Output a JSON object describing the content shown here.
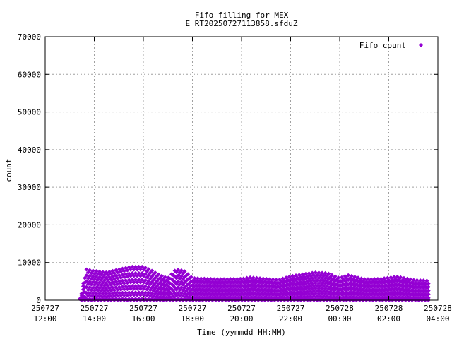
{
  "chart_data": {
    "type": "scatter",
    "title": "Fifo filling for MEX",
    "subtitle": "E_RT20250727113858.sfduZ",
    "xlabel": "Time (yymmdd HH:MM)",
    "ylabel": "count",
    "xlim": [
      "2025-07-27 12:00",
      "2025-07-28 04:00"
    ],
    "ylim": [
      0,
      70000
    ],
    "grid": true,
    "legend_position": "top-right",
    "x_ticks": [
      {
        "time": "2025-07-27 12:00",
        "line1": "250727",
        "line2": "12:00"
      },
      {
        "time": "2025-07-27 14:00",
        "line1": "250727",
        "line2": "14:00"
      },
      {
        "time": "2025-07-27 16:00",
        "line1": "250727",
        "line2": "16:00"
      },
      {
        "time": "2025-07-27 18:00",
        "line1": "250727",
        "line2": "18:00"
      },
      {
        "time": "2025-07-27 20:00",
        "line1": "250727",
        "line2": "20:00"
      },
      {
        "time": "2025-07-27 22:00",
        "line1": "250727",
        "line2": "22:00"
      },
      {
        "time": "2025-07-28 00:00",
        "line1": "250728",
        "line2": "00:00"
      },
      {
        "time": "2025-07-28 02:00",
        "line1": "250728",
        "line2": "02:00"
      },
      {
        "time": "2025-07-28 04:00",
        "line1": "250728",
        "line2": "04:00"
      }
    ],
    "y_ticks": [
      0,
      10000,
      20000,
      30000,
      40000,
      50000,
      60000,
      70000
    ],
    "series": [
      {
        "name": "Fifo count",
        "color": "#9400d3",
        "marker": "diamond",
        "layers": 6,
        "envelope": [
          [
            "2025-07-27 13:25",
            0
          ],
          [
            "2025-07-27 13:40",
            7800
          ],
          [
            "2025-07-27 14:00",
            7400
          ],
          [
            "2025-07-27 14:30",
            7000
          ],
          [
            "2025-07-27 15:00",
            7800
          ],
          [
            "2025-07-27 15:30",
            8500
          ],
          [
            "2025-07-27 16:00",
            8500
          ],
          [
            "2025-07-27 16:20",
            7500
          ],
          [
            "2025-07-27 16:40",
            6300
          ],
          [
            "2025-07-27 17:00",
            5500
          ],
          [
            "2025-07-27 17:20",
            7800
          ],
          [
            "2025-07-27 17:40",
            7400
          ],
          [
            "2025-07-27 18:00",
            5500
          ],
          [
            "2025-07-27 19:00",
            5200
          ],
          [
            "2025-07-27 20:00",
            5300
          ],
          [
            "2025-07-27 20:20",
            5700
          ],
          [
            "2025-07-27 21:00",
            5300
          ],
          [
            "2025-07-27 21:30",
            5000
          ],
          [
            "2025-07-27 22:00",
            6000
          ],
          [
            "2025-07-27 22:30",
            6500
          ],
          [
            "2025-07-27 23:00",
            7000
          ],
          [
            "2025-07-27 23:30",
            6800
          ],
          [
            "2025-07-28 00:00",
            5500
          ],
          [
            "2025-07-28 00:20",
            6300
          ],
          [
            "2025-07-28 01:00",
            5200
          ],
          [
            "2025-07-28 01:40",
            5300
          ],
          [
            "2025-07-28 02:20",
            5900
          ],
          [
            "2025-07-28 03:00",
            5000
          ],
          [
            "2025-07-28 03:40",
            4800
          ]
        ]
      }
    ]
  }
}
